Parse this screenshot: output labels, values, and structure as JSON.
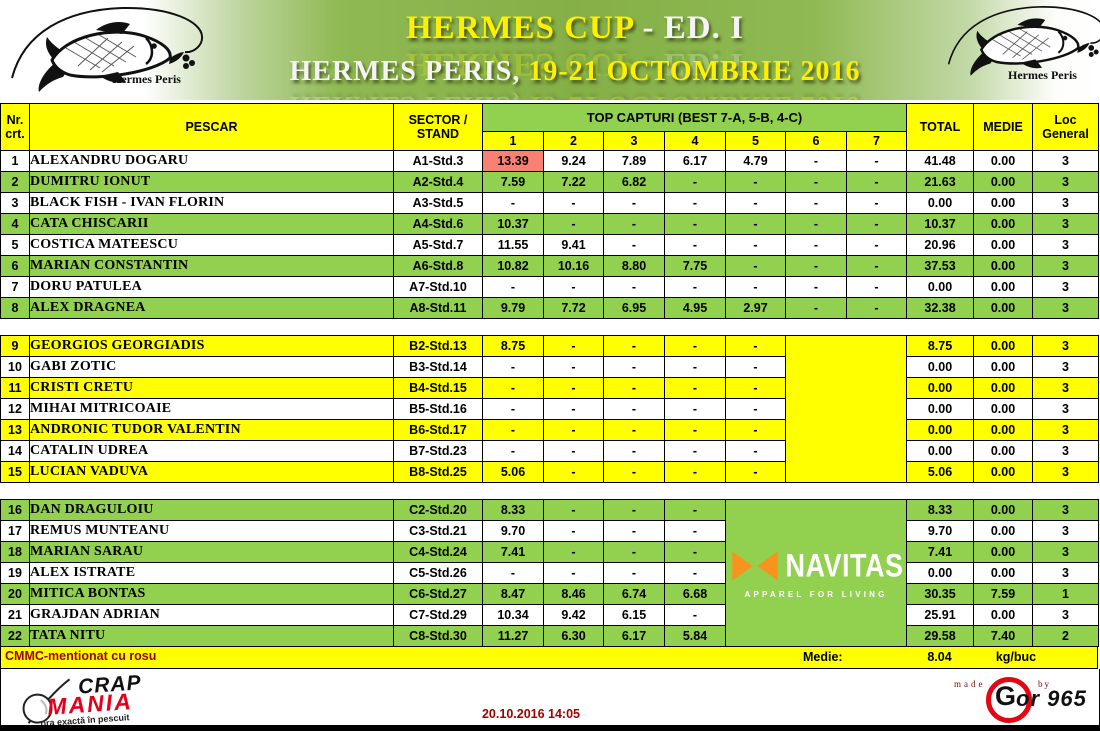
{
  "colors": {
    "row_green": "#92D050",
    "row_yellow": "#FFFF00",
    "highlight_red": "#FA8072",
    "navitas_orange": "#F7941E",
    "note_text_red": "#A00000"
  },
  "banner": {
    "logo_text": "Hermes Peris",
    "title_main": "HERMES CUP",
    "title_suffix": " - ED. I",
    "subtitle_plain": "HERMES PERIS, ",
    "subtitle_accent": "19-21 OCTOMBRIE 2016"
  },
  "table": {
    "header": {
      "nr_line1": "Nr.",
      "nr_line2": "crt.",
      "pescar": "PESCAR",
      "sector_line1": "SECTOR /",
      "sector_line2": "STAND",
      "top_capturi": "TOP CAPTURI (BEST 7-A, 5-B, 4-C)",
      "capture_cols": [
        "1",
        "2",
        "3",
        "4",
        "5",
        "6",
        "7"
      ],
      "total": "TOTAL",
      "medie": "MEDIE",
      "loc_line1": "Loc",
      "loc_line2": "General"
    },
    "sections": [
      {
        "merged": null,
        "rows": [
          {
            "nr": "1",
            "name": "ALEXANDRU DOGARU",
            "stand": "A1-Std.3",
            "captures": [
              "13.39",
              "9.24",
              "7.89",
              "6.17",
              "4.79",
              "-",
              "-"
            ],
            "highlight": [
              0
            ],
            "total": "41.48",
            "medie": "0.00",
            "loc": "3",
            "shade": "white"
          },
          {
            "nr": "2",
            "name": "DUMITRU IONUT",
            "stand": "A2-Std.4",
            "captures": [
              "7.59",
              "7.22",
              "6.82",
              "-",
              "-",
              "-",
              "-"
            ],
            "total": "21.63",
            "medie": "0.00",
            "loc": "3",
            "shade": "green"
          },
          {
            "nr": "3",
            "name": "BLACK FISH - IVAN FLORIN",
            "stand": "A3-Std.5",
            "captures": [
              "-",
              "-",
              "-",
              "-",
              "-",
              "-",
              "-"
            ],
            "total": "0.00",
            "medie": "0.00",
            "loc": "3",
            "shade": "white"
          },
          {
            "nr": "4",
            "name": "CATA CHISCARII",
            "stand": "A4-Std.6",
            "captures": [
              "10.37",
              "-",
              "-",
              "-",
              "-",
              "-",
              "-"
            ],
            "total": "10.37",
            "medie": "0.00",
            "loc": "3",
            "shade": "green"
          },
          {
            "nr": "5",
            "name": "COSTICA MATEESCU",
            "stand": "A5-Std.7",
            "captures": [
              "11.55",
              "9.41",
              "-",
              "-",
              "-",
              "-",
              "-"
            ],
            "total": "20.96",
            "medie": "0.00",
            "loc": "3",
            "shade": "white"
          },
          {
            "nr": "6",
            "name": "MARIAN CONSTANTIN",
            "stand": "A6-Std.8",
            "captures": [
              "10.82",
              "10.16",
              "8.80",
              "7.75",
              "-",
              "-",
              "-"
            ],
            "total": "37.53",
            "medie": "0.00",
            "loc": "3",
            "shade": "green"
          },
          {
            "nr": "7",
            "name": "DORU PATULEA",
            "stand": "A7-Std.10",
            "captures": [
              "-",
              "-",
              "-",
              "-",
              "-",
              "-",
              "-"
            ],
            "total": "0.00",
            "medie": "0.00",
            "loc": "3",
            "shade": "white"
          },
          {
            "nr": "8",
            "name": "ALEX DRAGNEA",
            "stand": "A8-Std.11",
            "captures": [
              "9.79",
              "7.72",
              "6.95",
              "4.95",
              "2.97",
              "-",
              "-"
            ],
            "total": "32.38",
            "medie": "0.00",
            "loc": "3",
            "shade": "green"
          }
        ]
      },
      {
        "merged": {
          "colspan": 2,
          "fill": "yellow"
        },
        "rows": [
          {
            "nr": "9",
            "name": "GEORGIOS GEORGIADIS",
            "stand": "B2-Std.13",
            "captures": [
              "8.75",
              "-",
              "-",
              "-",
              "-"
            ],
            "total": "8.75",
            "medie": "0.00",
            "loc": "3",
            "shade": "yellow"
          },
          {
            "nr": "10",
            "name": "GABI ZOTIC",
            "stand": "B3-Std.14",
            "captures": [
              "-",
              "-",
              "-",
              "-",
              "-"
            ],
            "total": "0.00",
            "medie": "0.00",
            "loc": "3",
            "shade": "white"
          },
          {
            "nr": "11",
            "name": "CRISTI CRETU",
            "stand": "B4-Std.15",
            "captures": [
              "-",
              "-",
              "-",
              "-",
              "-"
            ],
            "total": "0.00",
            "medie": "0.00",
            "loc": "3",
            "shade": "yellow"
          },
          {
            "nr": "12",
            "name": "MIHAI MITRICOAIE",
            "stand": "B5-Std.16",
            "captures": [
              "-",
              "-",
              "-",
              "-",
              "-"
            ],
            "total": "0.00",
            "medie": "0.00",
            "loc": "3",
            "shade": "white"
          },
          {
            "nr": "13",
            "name": "ANDRONIC TUDOR VALENTIN",
            "stand": "B6-Std.17",
            "captures": [
              "-",
              "-",
              "-",
              "-",
              "-"
            ],
            "total": "0.00",
            "medie": "0.00",
            "loc": "3",
            "shade": "yellow"
          },
          {
            "nr": "14",
            "name": "CATALIN UDREA",
            "stand": "B7-Std.23",
            "captures": [
              "-",
              "-",
              "-",
              "-",
              "-"
            ],
            "total": "0.00",
            "medie": "0.00",
            "loc": "3",
            "shade": "white"
          },
          {
            "nr": "15",
            "name": "LUCIAN VADUVA",
            "stand": "B8-Std.25",
            "captures": [
              "5.06",
              "-",
              "-",
              "-",
              "-"
            ],
            "total": "5.06",
            "medie": "0.00",
            "loc": "3",
            "shade": "yellow"
          }
        ]
      },
      {
        "merged": {
          "colspan": 3,
          "fill": "green",
          "brand": true
        },
        "rows": [
          {
            "nr": "16",
            "name": "DAN DRAGULOIU",
            "stand": "C2-Std.20",
            "captures": [
              "8.33",
              "-",
              "-",
              "-"
            ],
            "total": "8.33",
            "medie": "0.00",
            "loc": "3",
            "shade": "green"
          },
          {
            "nr": "17",
            "name": "REMUS MUNTEANU",
            "stand": "C3-Std.21",
            "captures": [
              "9.70",
              "-",
              "-",
              "-"
            ],
            "total": "9.70",
            "medie": "0.00",
            "loc": "3",
            "shade": "white"
          },
          {
            "nr": "18",
            "name": "MARIAN SARAU",
            "stand": "C4-Std.24",
            "captures": [
              "7.41",
              "-",
              "-",
              "-"
            ],
            "total": "7.41",
            "medie": "0.00",
            "loc": "3",
            "shade": "green"
          },
          {
            "nr": "19",
            "name": "ALEX ISTRATE",
            "stand": "C5-Std.26",
            "captures": [
              "-",
              "-",
              "-",
              "-"
            ],
            "total": "0.00",
            "medie": "0.00",
            "loc": "3",
            "shade": "white"
          },
          {
            "nr": "20",
            "name": "MITICA BONTAS",
            "stand": "C6-Std.27",
            "captures": [
              "8.47",
              "8.46",
              "6.74",
              "6.68"
            ],
            "total": "30.35",
            "medie": "7.59",
            "loc": "1",
            "shade": "green"
          },
          {
            "nr": "21",
            "name": "GRAJDAN ADRIAN",
            "stand": "C7-Std.29",
            "captures": [
              "10.34",
              "9.42",
              "6.15",
              "-"
            ],
            "total": "25.91",
            "medie": "0.00",
            "loc": "3",
            "shade": "white"
          },
          {
            "nr": "22",
            "name": "TATA NITU",
            "stand": "C8-Std.30",
            "captures": [
              "11.27",
              "6.30",
              "6.17",
              "5.84"
            ],
            "total": "29.58",
            "medie": "7.40",
            "loc": "2",
            "shade": "green"
          }
        ]
      }
    ]
  },
  "navitas": {
    "brand": "NAVITAS",
    "tagline": "APPAREL FOR LIVING"
  },
  "note_bar": {
    "note": "CMMC-mentionat cu rosu",
    "medie_label": "Medie:",
    "medie_value": "8.04",
    "medie_unit": "kg/buc"
  },
  "footer": {
    "date": "20.10.2016 14:05",
    "crapmania": {
      "word1": "CRAP",
      "word2": "MANIA",
      "tagline": "ora exactă în pescuit"
    },
    "gor": {
      "made": "made",
      "by": "by",
      "g_letter": "G",
      "rest": "or 965"
    }
  }
}
